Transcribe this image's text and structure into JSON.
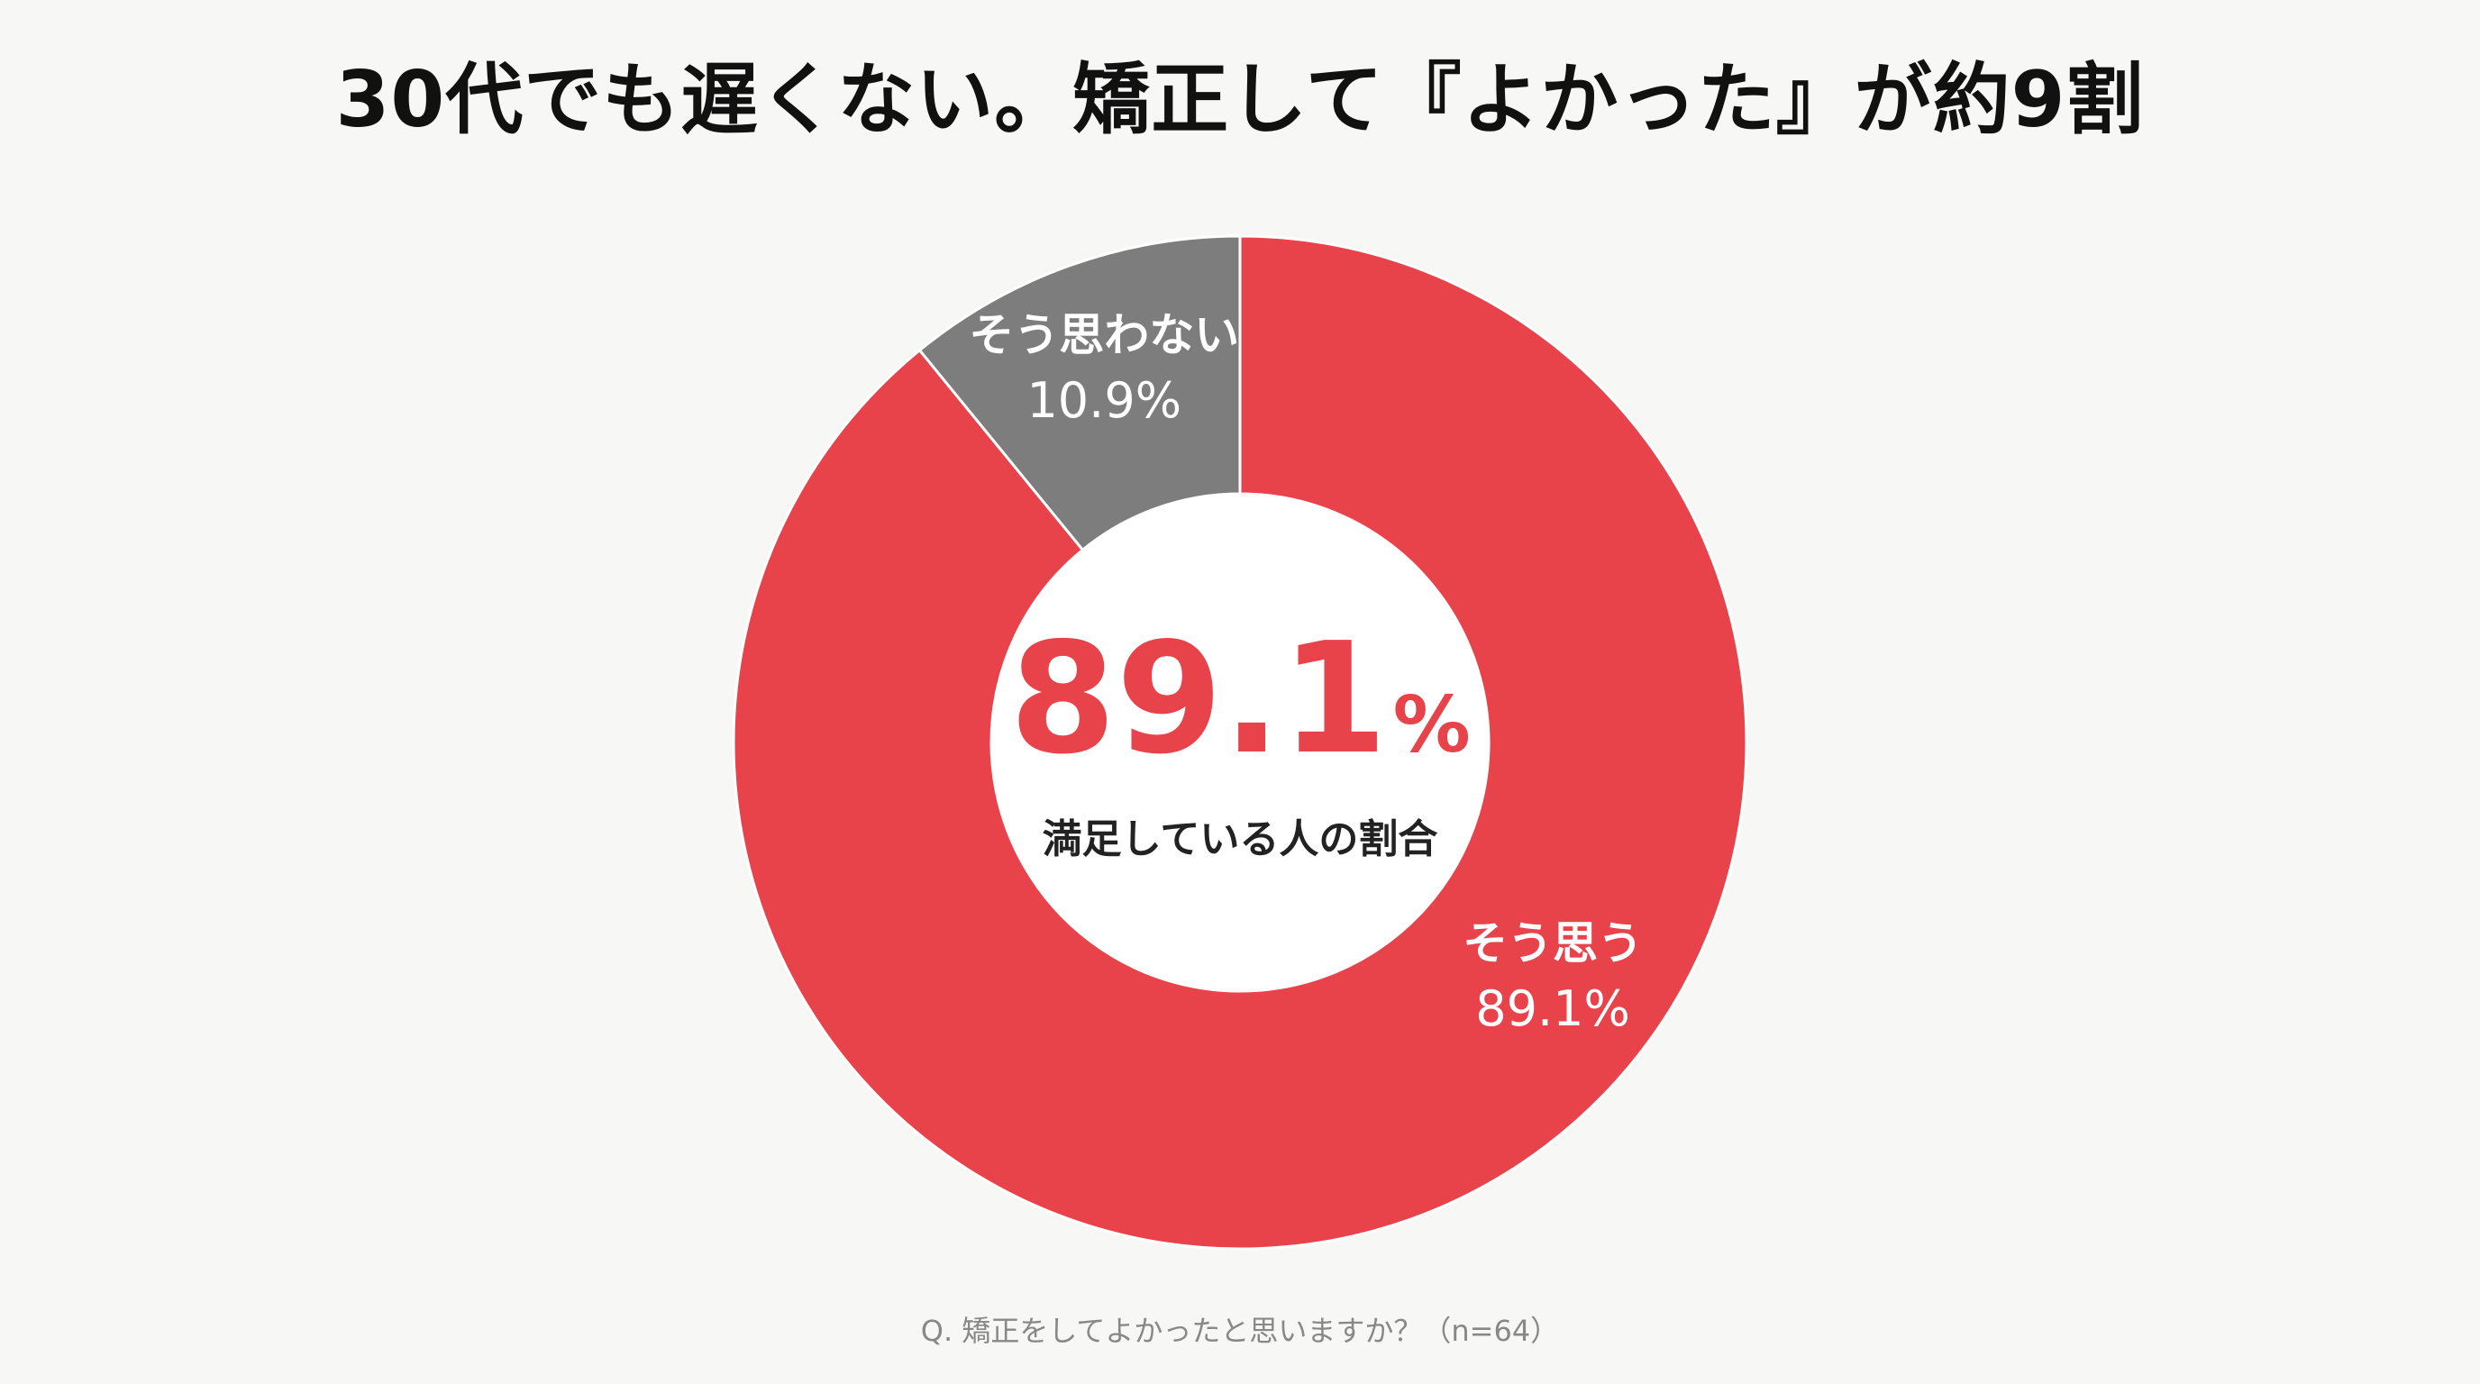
{
  "chart_data": {
    "type": "pie",
    "title": "30代でも遅くない。矯正して『よかった』が約9割",
    "slices": [
      {
        "label": "そう思う",
        "value": 89.1,
        "value_label": "89.1%",
        "color": "#e8434a"
      },
      {
        "label": "そう思わない",
        "value": 10.9,
        "value_label": "10.9%",
        "color": "#7d7d7d"
      }
    ],
    "donut": true,
    "center_value": "89.1",
    "center_unit": "%",
    "center_caption": "満足している人の割合",
    "footnote": "Q. 矯正をしてよかったと思いますか？（n=64）",
    "legend": "none",
    "grid": false
  },
  "colors": {
    "background": "#f7f7f5",
    "primary": "#e8434a",
    "secondary": "#7d7d7d",
    "title": "#111111",
    "caption": "#222222",
    "footnote": "#888888"
  }
}
